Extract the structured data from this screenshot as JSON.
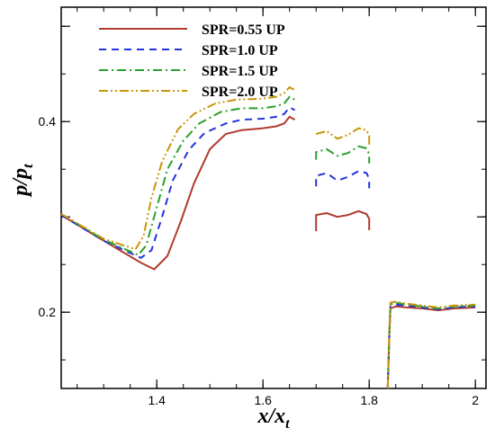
{
  "chart_data": {
    "type": "line",
    "title": "",
    "xlabel": {
      "base": "x/x",
      "sub": "t"
    },
    "ylabel": {
      "base": "p/p",
      "sub": "t"
    },
    "xlim": [
      1.22,
      2.02
    ],
    "ylim": [
      0.12,
      0.52
    ],
    "xticks": [
      1.4,
      1.6,
      1.8,
      2.0
    ],
    "xtick_labels": [
      "1.4",
      "1.6",
      "1.8",
      "2"
    ],
    "yticks": [
      0.2,
      0.4
    ],
    "ytick_labels": [
      "0.2",
      "0.4"
    ],
    "grid": false,
    "legend_position": "top-left",
    "series": [
      {
        "name": "SPR=0.55 UP",
        "color": "#b03a2e",
        "dash": "solid",
        "segments": [
          [
            [
              1.22,
              0.302
            ],
            [
              1.3,
              0.275
            ],
            [
              1.37,
              0.252
            ],
            [
              1.395,
              0.245
            ],
            [
              1.42,
              0.259
            ],
            [
              1.445,
              0.295
            ],
            [
              1.47,
              0.335
            ],
            [
              1.5,
              0.371
            ],
            [
              1.53,
              0.387
            ],
            [
              1.56,
              0.391
            ],
            [
              1.6,
              0.393
            ],
            [
              1.625,
              0.395
            ],
            [
              1.64,
              0.398
            ],
            [
              1.65,
              0.405
            ],
            [
              1.66,
              0.402
            ]
          ],
          [
            [
              1.7,
              0.285
            ],
            [
              1.7,
              0.302
            ],
            [
              1.72,
              0.304
            ],
            [
              1.74,
              0.3
            ],
            [
              1.76,
              0.302
            ],
            [
              1.78,
              0.306
            ],
            [
              1.795,
              0.303
            ],
            [
              1.8,
              0.298
            ],
            [
              1.8,
              0.286
            ]
          ],
          [
            [
              1.835,
              0.12
            ],
            [
              1.838,
              0.175
            ],
            [
              1.84,
              0.204
            ],
            [
              1.85,
              0.206
            ],
            [
              1.87,
              0.205
            ],
            [
              1.9,
              0.204
            ],
            [
              1.93,
              0.202
            ],
            [
              1.96,
              0.204
            ],
            [
              2.0,
              0.205
            ]
          ]
        ]
      },
      {
        "name": "SPR=1.0 UP",
        "color": "#2233dd",
        "dash": "8,6",
        "segments": [
          [
            [
              1.22,
              0.302
            ],
            [
              1.3,
              0.275
            ],
            [
              1.37,
              0.257
            ],
            [
              1.39,
              0.265
            ],
            [
              1.41,
              0.3
            ],
            [
              1.43,
              0.338
            ],
            [
              1.46,
              0.37
            ],
            [
              1.49,
              0.388
            ],
            [
              1.53,
              0.398
            ],
            [
              1.56,
              0.402
            ],
            [
              1.6,
              0.403
            ],
            [
              1.625,
              0.405
            ],
            [
              1.64,
              0.408
            ],
            [
              1.65,
              0.415
            ],
            [
              1.66,
              0.412
            ]
          ],
          [
            [
              1.7,
              0.332
            ],
            [
              1.7,
              0.343
            ],
            [
              1.72,
              0.346
            ],
            [
              1.74,
              0.338
            ],
            [
              1.76,
              0.342
            ],
            [
              1.78,
              0.348
            ],
            [
              1.795,
              0.346
            ],
            [
              1.8,
              0.34
            ],
            [
              1.8,
              0.33
            ]
          ],
          [
            [
              1.835,
              0.12
            ],
            [
              1.838,
              0.178
            ],
            [
              1.84,
              0.206
            ],
            [
              1.85,
              0.208
            ],
            [
              1.87,
              0.207
            ],
            [
              1.9,
              0.205
            ],
            [
              1.93,
              0.203
            ],
            [
              1.96,
              0.205
            ],
            [
              2.0,
              0.206
            ]
          ]
        ]
      },
      {
        "name": "SPR=1.5 UP",
        "color": "#2aa02a",
        "dash": "10,4,2,4",
        "segments": [
          [
            [
              1.22,
              0.303
            ],
            [
              1.3,
              0.276
            ],
            [
              1.365,
              0.26
            ],
            [
              1.38,
              0.27
            ],
            [
              1.4,
              0.31
            ],
            [
              1.42,
              0.35
            ],
            [
              1.45,
              0.38
            ],
            [
              1.48,
              0.398
            ],
            [
              1.52,
              0.41
            ],
            [
              1.56,
              0.414
            ],
            [
              1.6,
              0.414
            ],
            [
              1.625,
              0.416
            ],
            [
              1.64,
              0.419
            ],
            [
              1.65,
              0.426
            ],
            [
              1.66,
              0.423
            ]
          ],
          [
            [
              1.7,
              0.36
            ],
            [
              1.7,
              0.368
            ],
            [
              1.72,
              0.371
            ],
            [
              1.74,
              0.364
            ],
            [
              1.76,
              0.367
            ],
            [
              1.78,
              0.374
            ],
            [
              1.795,
              0.372
            ],
            [
              1.8,
              0.366
            ],
            [
              1.8,
              0.356
            ]
          ],
          [
            [
              1.835,
              0.12
            ],
            [
              1.838,
              0.18
            ],
            [
              1.84,
              0.208
            ],
            [
              1.85,
              0.21
            ],
            [
              1.87,
              0.208
            ],
            [
              1.9,
              0.206
            ],
            [
              1.93,
              0.204
            ],
            [
              1.96,
              0.206
            ],
            [
              2.0,
              0.207
            ]
          ]
        ]
      },
      {
        "name": "SPR=2.0 UP",
        "color": "#c8960a",
        "dash": "10,3,2,3,2,3",
        "segments": [
          [
            [
              1.22,
              0.303
            ],
            [
              1.3,
              0.277
            ],
            [
              1.36,
              0.266
            ],
            [
              1.375,
              0.28
            ],
            [
              1.39,
              0.32
            ],
            [
              1.41,
              0.358
            ],
            [
              1.44,
              0.392
            ],
            [
              1.47,
              0.408
            ],
            [
              1.51,
              0.419
            ],
            [
              1.55,
              0.423
            ],
            [
              1.6,
              0.424
            ],
            [
              1.625,
              0.426
            ],
            [
              1.64,
              0.43
            ],
            [
              1.65,
              0.436
            ],
            [
              1.66,
              0.433
            ]
          ],
          [
            [
              1.7,
              0.387
            ],
            [
              1.72,
              0.39
            ],
            [
              1.74,
              0.382
            ],
            [
              1.76,
              0.386
            ],
            [
              1.78,
              0.393
            ],
            [
              1.795,
              0.391
            ],
            [
              1.8,
              0.385
            ],
            [
              1.8,
              0.374
            ]
          ],
          [
            [
              1.835,
              0.12
            ],
            [
              1.838,
              0.182
            ],
            [
              1.84,
              0.21
            ],
            [
              1.85,
              0.211
            ],
            [
              1.87,
              0.209
            ],
            [
              1.9,
              0.207
            ],
            [
              1.93,
              0.205
            ],
            [
              1.96,
              0.207
            ],
            [
              2.0,
              0.208
            ]
          ]
        ]
      }
    ]
  }
}
